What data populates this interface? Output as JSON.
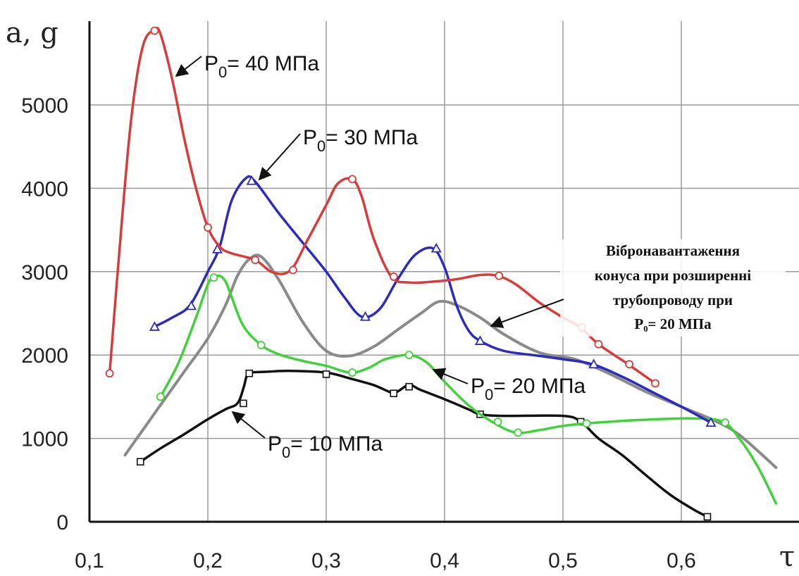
{
  "chart_data": {
    "type": "line",
    "y_axis_title": "a, g",
    "x_axis_title": "τ",
    "xlim": [
      0.1,
      0.68
    ],
    "ylim": [
      0,
      6000
    ],
    "x_ticks": [
      "0,1",
      "0,2",
      "0,3",
      "0,4",
      "0,5",
      "0,6"
    ],
    "y_ticks": [
      "0",
      "1000",
      "2000",
      "3000",
      "4000",
      "5000"
    ],
    "grid": true,
    "colors": {
      "red": "#d93a3a",
      "blue": "#2b2bc0",
      "green": "#3fd23a",
      "gray": "#8a8a8a",
      "black": "#111111"
    },
    "series": [
      {
        "name": "P0 = 40 МПа",
        "color_key": "red",
        "marker": "circle",
        "x": [
          0.117,
          0.125,
          0.135,
          0.145,
          0.155,
          0.16,
          0.17,
          0.18,
          0.19,
          0.2,
          0.21,
          0.22,
          0.24,
          0.255,
          0.27,
          0.285,
          0.3,
          0.31,
          0.322,
          0.33,
          0.34,
          0.355,
          0.37,
          0.39,
          0.41,
          0.43,
          0.445,
          0.46,
          0.48,
          0.5,
          0.515,
          0.53,
          0.555,
          0.578
        ],
        "y": [
          1780,
          3200,
          4800,
          5700,
          5900,
          5850,
          5300,
          4600,
          4000,
          3530,
          3300,
          3220,
          3140,
          2990,
          3020,
          3400,
          3800,
          4060,
          4110,
          3900,
          3400,
          2940,
          2870,
          2880,
          2910,
          2960,
          2950,
          2850,
          2630,
          2450,
          2330,
          2130,
          1890,
          1660
        ],
        "markers_x": [
          0.117,
          0.155,
          0.2,
          0.24,
          0.272,
          0.322,
          0.357,
          0.446,
          0.516,
          0.53,
          0.556,
          0.578
        ],
        "markers_y": [
          1780,
          5890,
          3530,
          3140,
          3020,
          4110,
          2940,
          2950,
          2330,
          2130,
          1890,
          1660
        ]
      },
      {
        "name": "P0 = 30 МПа",
        "color_key": "blue",
        "marker": "triangle",
        "x": [
          0.155,
          0.17,
          0.185,
          0.2,
          0.21,
          0.22,
          0.232,
          0.24,
          0.26,
          0.28,
          0.3,
          0.315,
          0.33,
          0.345,
          0.36,
          0.375,
          0.39,
          0.4,
          0.41,
          0.42,
          0.43,
          0.45,
          0.48,
          0.5,
          0.525,
          0.55,
          0.575,
          0.6,
          0.625
        ],
        "y": [
          2340,
          2450,
          2600,
          3000,
          3300,
          3850,
          4120,
          4080,
          3700,
          3350,
          3000,
          2700,
          2460,
          2550,
          2900,
          3200,
          3280,
          3050,
          2600,
          2300,
          2170,
          2050,
          1990,
          1950,
          1890,
          1740,
          1560,
          1380,
          1190
        ],
        "markers_x": [
          0.155,
          0.186,
          0.208,
          0.237,
          0.333,
          0.393,
          0.43,
          0.526,
          0.625
        ],
        "markers_y": [
          2340,
          2590,
          3270,
          4090,
          2460,
          3280,
          2170,
          1890,
          1190
        ]
      },
      {
        "name": "P0 = 20 МПа",
        "color_key": "green",
        "marker": "circle",
        "x": [
          0.16,
          0.175,
          0.19,
          0.2,
          0.205,
          0.21,
          0.215,
          0.22,
          0.23,
          0.245,
          0.26,
          0.28,
          0.3,
          0.32,
          0.335,
          0.35,
          0.37,
          0.385,
          0.4,
          0.42,
          0.44,
          0.46,
          0.48,
          0.5,
          0.52,
          0.55,
          0.58,
          0.61,
          0.635,
          0.65,
          0.665,
          0.68
        ],
        "y": [
          1500,
          1900,
          2450,
          2850,
          2930,
          2950,
          2880,
          2700,
          2350,
          2120,
          2010,
          1930,
          1870,
          1790,
          1840,
          1950,
          2000,
          1910,
          1680,
          1400,
          1200,
          1070,
          1100,
          1150,
          1180,
          1210,
          1230,
          1240,
          1200,
          980,
          650,
          220
        ],
        "markers_x": [
          0.16,
          0.205,
          0.245,
          0.322,
          0.37,
          0.445,
          0.462,
          0.52,
          0.637
        ],
        "markers_y": [
          1500,
          2930,
          2120,
          1790,
          2000,
          1200,
          1070,
          1180,
          1190
        ]
      },
      {
        "name": "Вібронавантаження конуса при розширенні трубопроводу при P₀= 20 МПа",
        "color_key": "gray",
        "marker": "none",
        "x": [
          0.13,
          0.145,
          0.16,
          0.18,
          0.2,
          0.215,
          0.225,
          0.235,
          0.245,
          0.26,
          0.28,
          0.3,
          0.32,
          0.34,
          0.36,
          0.38,
          0.395,
          0.41,
          0.43,
          0.45,
          0.48,
          0.51,
          0.54,
          0.57,
          0.6,
          0.63,
          0.65,
          0.68
        ],
        "y": [
          800,
          1100,
          1400,
          1800,
          2200,
          2600,
          2950,
          3150,
          3180,
          2900,
          2400,
          2050,
          1990,
          2100,
          2300,
          2500,
          2640,
          2600,
          2450,
          2250,
          2030,
          1950,
          1770,
          1560,
          1380,
          1200,
          1030,
          650
        ]
      },
      {
        "name": "P0 = 10 МПа",
        "color_key": "black",
        "marker": "square",
        "x": [
          0.143,
          0.16,
          0.18,
          0.2,
          0.215,
          0.225,
          0.23,
          0.233,
          0.235,
          0.25,
          0.27,
          0.3,
          0.32,
          0.34,
          0.355,
          0.36,
          0.37,
          0.38,
          0.4,
          0.42,
          0.43,
          0.45,
          0.5,
          0.515,
          0.53,
          0.55,
          0.57,
          0.59,
          0.61,
          0.622
        ],
        "y": [
          720,
          880,
          1050,
          1230,
          1350,
          1420,
          1600,
          1760,
          1790,
          1800,
          1810,
          1790,
          1720,
          1640,
          1550,
          1560,
          1640,
          1580,
          1470,
          1350,
          1290,
          1270,
          1270,
          1200,
          1000,
          800,
          560,
          330,
          150,
          60
        ],
        "markers_x": [
          0.143,
          0.23,
          0.235,
          0.3,
          0.357,
          0.37,
          0.43,
          0.515,
          0.622
        ],
        "markers_y": [
          720,
          1420,
          1780,
          1770,
          1540,
          1620,
          1290,
          1200,
          60
        ]
      }
    ],
    "annotations": [
      {
        "text": "P",
        "sub": "0",
        "rest": "= 40 МПа",
        "series_key": "red"
      },
      {
        "text": "P",
        "sub": "0",
        "rest": "= 30 МПа",
        "series_key": "blue"
      },
      {
        "text": "P",
        "sub": "0",
        "rest": "= 20 МПа",
        "series_key": "green"
      },
      {
        "text": "P",
        "sub": "0",
        "rest": "= 10 МПа",
        "series_key": "black"
      }
    ],
    "gray_label_lines": [
      "Вібронавантаження",
      "конуса при розширенні",
      "трубопроводу при",
      "P₀= 20 МПа"
    ]
  }
}
